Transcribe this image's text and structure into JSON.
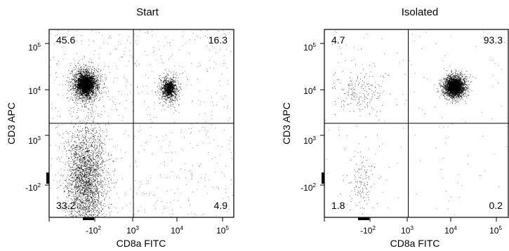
{
  "chart_data": [
    {
      "type": "scatter",
      "title": "Start",
      "xlabel": "CD8a FITC",
      "ylabel": "CD3 APC",
      "x_scale": "biexponential",
      "y_scale": "biexponential",
      "x_ticks": [
        {
          "base": "-10",
          "exp": "2"
        },
        {
          "base": "10",
          "exp": "3"
        },
        {
          "base": "10",
          "exp": "4"
        },
        {
          "base": "10",
          "exp": "5"
        }
      ],
      "y_ticks": [
        {
          "base": "10",
          "exp": "5"
        },
        {
          "base": "10",
          "exp": "4"
        },
        {
          "base": "10",
          "exp": "3"
        },
        {
          "base": "-10",
          "exp": "2"
        }
      ],
      "gate": {
        "x": 1000,
        "y": 1500
      },
      "quadrants": {
        "upper_left": "45.6",
        "upper_right": "16.3",
        "lower_left": "33.2",
        "lower_right": "4.9"
      },
      "populations": [
        {
          "label": "CD3+ CD8a-",
          "center_x": -50,
          "center_y": 10000
        },
        {
          "label": "CD3+ CD8a+",
          "center_x": 6000,
          "center_y": 8000
        },
        {
          "label": "CD3- CD8a-",
          "center_x": -50,
          "center_y": -50
        }
      ]
    },
    {
      "type": "scatter",
      "title": "Isolated",
      "xlabel": "CD8a FITC",
      "ylabel": "CD3 APC",
      "x_scale": "biexponential",
      "y_scale": "biexponential",
      "x_ticks": [
        {
          "base": "-10",
          "exp": "2"
        },
        {
          "base": "10",
          "exp": "3"
        },
        {
          "base": "10",
          "exp": "4"
        },
        {
          "base": "10",
          "exp": "5"
        }
      ],
      "y_ticks": [
        {
          "base": "10",
          "exp": "5"
        },
        {
          "base": "10",
          "exp": "4"
        },
        {
          "base": "10",
          "exp": "3"
        },
        {
          "base": "-10",
          "exp": "2"
        }
      ],
      "gate": {
        "x": 1000,
        "y": 1500
      },
      "quadrants": {
        "upper_left": "4.7",
        "upper_right": "93.3",
        "lower_left": "1.8",
        "lower_right": "0.2"
      },
      "populations": [
        {
          "label": "CD3+ CD8a+",
          "center_x": 10000,
          "center_y": 9000
        },
        {
          "label": "CD3+ CD8a-",
          "center_x": -50,
          "center_y": 8000
        },
        {
          "label": "CD3- CD8a-",
          "center_x": -50,
          "center_y": -50
        }
      ]
    }
  ]
}
